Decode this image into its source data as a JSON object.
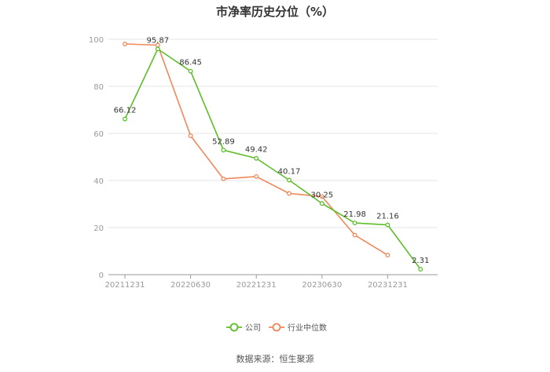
{
  "chart_data": {
    "type": "line",
    "title": "市净率历史分位（%）",
    "xlabel": "",
    "ylabel": "",
    "ylim": [
      0,
      100
    ],
    "yticks": [
      0,
      20,
      40,
      60,
      80,
      100
    ],
    "x_tick_labels": [
      "20211231",
      "20220630",
      "20221231",
      "20230630",
      "20231231"
    ],
    "grid": true,
    "legend_position": "bottom",
    "source": "数据来源：恒生聚源",
    "series": [
      {
        "name": "公司",
        "color": "#5cbf2a",
        "values": [
          66.12,
          95.87,
          86.45,
          52.89,
          49.42,
          40.17,
          30.25,
          21.98,
          21.16,
          2.31
        ],
        "labels": [
          "66.12",
          "95.87",
          "86.45",
          "52.89",
          "49.42",
          "40.17",
          "30.25",
          "21.98",
          "21.16",
          "2.31"
        ]
      },
      {
        "name": "行业中位数",
        "color": "#f0885a",
        "values": [
          98.0,
          97.5,
          59.0,
          40.7,
          41.7,
          34.5,
          33.2,
          16.8,
          8.3,
          null
        ]
      }
    ]
  }
}
